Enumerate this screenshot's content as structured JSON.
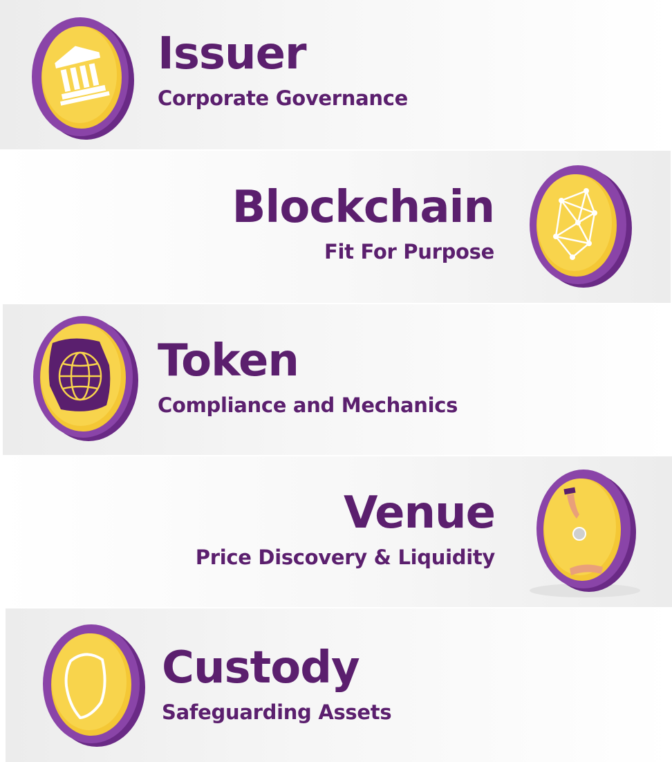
{
  "colors": {
    "purple_text": "#5b1f6e",
    "coin_rim": "#8a44a8",
    "coin_rim_dark": "#6a2a86",
    "coin_face": "#f6cf3a",
    "coin_face_light": "#f9dc5c",
    "icon_white": "#ffffff"
  },
  "items": [
    {
      "title": "Issuer",
      "subtitle": "Corporate Governance",
      "icon": "bank-building-icon"
    },
    {
      "title": "Blockchain",
      "subtitle": "Fit For Purpose",
      "icon": "network-nodes-icon"
    },
    {
      "title": "Token",
      "subtitle": "Compliance and Mechanics",
      "icon": "globe-icon"
    },
    {
      "title": "Venue",
      "subtitle": "Price Discovery & Liquidity",
      "icon": "hand-coin-exchange-icon"
    },
    {
      "title": "Custody",
      "subtitle": "Safeguarding Assets",
      "icon": "shield-icon"
    }
  ]
}
